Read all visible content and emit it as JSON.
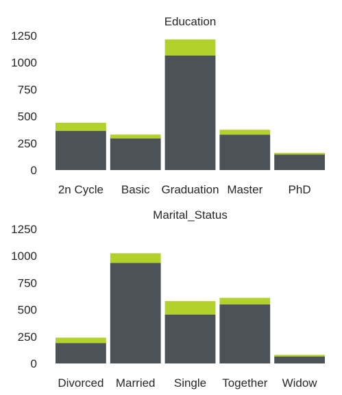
{
  "colors": {
    "base": "#4b5258",
    "top": "#b2d12a"
  },
  "chart_data": [
    {
      "type": "bar",
      "stacked": true,
      "title": "Education",
      "categories": [
        "2n Cycle",
        "Basic",
        "Graduation",
        "Master",
        "PhD"
      ],
      "series": [
        {
          "values": [
            365,
            295,
            1065,
            330,
            145
          ]
        },
        {
          "values": [
            75,
            35,
            150,
            45,
            15
          ]
        }
      ],
      "yticks": [
        0,
        250,
        500,
        750,
        1000,
        1250
      ],
      "ylim": [
        0,
        1300
      ],
      "grid": false,
      "legend": "none"
    },
    {
      "type": "bar",
      "stacked": true,
      "title": "Marital_Status",
      "categories": [
        "Divorced",
        "Married",
        "Single",
        "Together",
        "Widow"
      ],
      "series": [
        {
          "values": [
            190,
            935,
            455,
            550,
            65
          ]
        },
        {
          "values": [
            50,
            90,
            125,
            60,
            15
          ]
        }
      ],
      "yticks": [
        0,
        250,
        500,
        750,
        1000,
        1250
      ],
      "ylim": [
        0,
        1300
      ],
      "grid": false,
      "legend": "none"
    }
  ]
}
